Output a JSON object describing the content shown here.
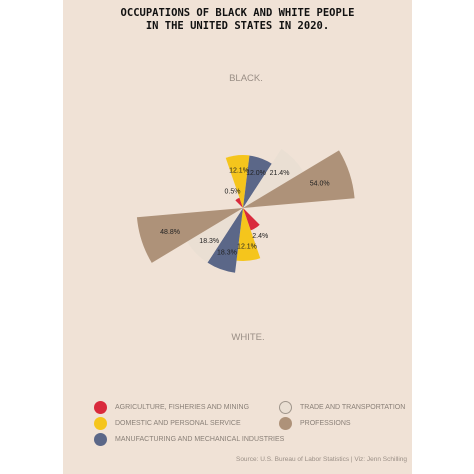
{
  "header": {
    "title_line1": "OCCUPATIONS OF BLACK AND WHITE PEOPLE",
    "title_line2": "IN THE UNITED STATES IN 2020."
  },
  "colors": {
    "background": "#f0e2d6",
    "agriculture": "#d92a3c",
    "domestic": "#f5c51c",
    "manufacturing": "#5b6788",
    "trade": "#eadfd3",
    "professions": "#ae9279"
  },
  "chart_data": [
    {
      "type": "pie",
      "title": "BLACK.",
      "slices": [
        {
          "category": "AGRICULTURE, FISHERIES AND MINING",
          "value": 0.5,
          "label": "0.5%"
        },
        {
          "category": "DOMESTIC AND PERSONAL SERVICE",
          "value": 12.1,
          "label": "12.1%"
        },
        {
          "category": "MANUFACTURING AND MECHANICAL INDUSTRIES",
          "value": 12.0,
          "label": "12.0%"
        },
        {
          "category": "TRADE AND TRANSPORTATION",
          "value": 21.4,
          "label": "21.4%"
        },
        {
          "category": "PROFESSIONS",
          "value": 54.0,
          "label": "54.0%"
        }
      ]
    },
    {
      "type": "pie",
      "title": "WHITE.",
      "slices": [
        {
          "category": "AGRICULTURE, FISHERIES AND MINING",
          "value": 2.4,
          "label": "2.4%"
        },
        {
          "category": "DOMESTIC AND PERSONAL SERVICE",
          "value": 12.1,
          "label": "12.1%"
        },
        {
          "category": "MANUFACTURING AND MECHANICAL INDUSTRIES",
          "value": 18.3,
          "label": "18.3%"
        },
        {
          "category": "TRADE AND TRANSPORTATION",
          "value": 18.3,
          "label": "18.3%"
        },
        {
          "category": "PROFESSIONS",
          "value": 48.8,
          "label": "48.8%"
        }
      ]
    }
  ],
  "legend": {
    "items": [
      {
        "label": "AGRICULTURE, FISHERIES AND MINING",
        "color": "#d92a3c"
      },
      {
        "label": "DOMESTIC AND PERSONAL SERVICE",
        "color": "#f5c51c"
      },
      {
        "label": "MANUFACTURING AND MECHANICAL INDUSTRIES",
        "color": "#5b6788"
      },
      {
        "label": "TRADE AND TRANSPORTATION",
        "color": "#eadfd3"
      },
      {
        "label": "PROFESSIONS",
        "color": "#ae9279"
      }
    ]
  },
  "footer": {
    "source": "Source: U.S. Bureau of Labor Statistics | Viz: Jenn Schilling"
  }
}
